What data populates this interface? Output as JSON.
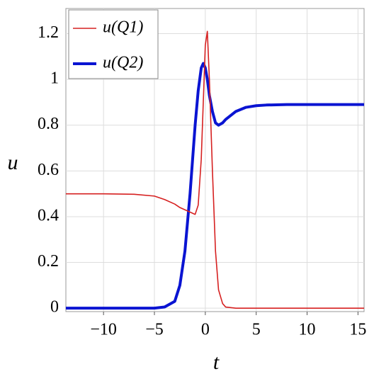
{
  "chart_data": {
    "type": "line",
    "x_label": "t",
    "y_label": "u",
    "x": [
      -13.7,
      -10,
      -7,
      -5,
      -4,
      -3,
      -2.5,
      -2,
      -1.5,
      -1,
      -0.7,
      -0.4,
      -0.2,
      0,
      0.2,
      0.4,
      0.7,
      1,
      1.3,
      1.7,
      2,
      3,
      4,
      5,
      6,
      8,
      10,
      13,
      15.6
    ],
    "series": [
      {
        "name": "u(Q1)",
        "color": "#d62020",
        "width": 1.6,
        "values": [
          0.5,
          0.5,
          0.498,
          0.49,
          0.475,
          0.455,
          0.44,
          0.43,
          0.42,
          0.41,
          0.45,
          0.65,
          0.9,
          1.15,
          1.21,
          1.0,
          0.6,
          0.25,
          0.08,
          0.02,
          0.005,
          0,
          0,
          0,
          0,
          0,
          0,
          0,
          0
        ]
      },
      {
        "name": "u(Q2)",
        "color": "#0a14d2",
        "width": 4,
        "values": [
          0,
          0,
          0,
          0,
          0.005,
          0.03,
          0.1,
          0.25,
          0.5,
          0.8,
          0.95,
          1.05,
          1.07,
          1.05,
          1.0,
          0.93,
          0.86,
          0.81,
          0.8,
          0.81,
          0.825,
          0.86,
          0.878,
          0.885,
          0.888,
          0.89,
          0.89,
          0.89,
          0.89
        ]
      }
    ],
    "xlim": [
      -13.7,
      15.6
    ],
    "ylim": [
      -0.015,
      1.31
    ],
    "xticks": [
      {
        "value": -10,
        "label": "−10"
      },
      {
        "value": -5,
        "label": "−5"
      },
      0,
      5,
      10,
      15
    ],
    "yticks": [
      0,
      0.2,
      0.4,
      0.6,
      0.8,
      1,
      1.2
    ],
    "grid": true,
    "legend": "top-left"
  }
}
